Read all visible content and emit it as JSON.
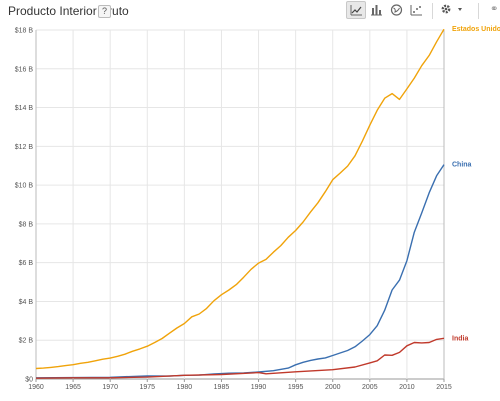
{
  "header": {
    "title": "Producto Interior Bruto",
    "help_label": "?"
  },
  "toolbar": {
    "buttons": [
      {
        "name": "line-chart-icon",
        "active": true
      },
      {
        "name": "bar-chart-icon",
        "active": false
      },
      {
        "name": "globe-icon",
        "active": false
      },
      {
        "name": "scatter-chart-icon",
        "active": false
      }
    ],
    "gear_icon": "gear-icon",
    "dropdown_icon": "caret-down-icon"
  },
  "colors": {
    "usa": "#f0a30a",
    "china": "#3a6fb0",
    "india": "#c0392b",
    "grid": "#e6e6e6"
  },
  "chart_data": {
    "type": "line",
    "title": "Producto Interior Bruto",
    "xlim": [
      1960,
      2015
    ],
    "ylim": [
      0,
      18
    ],
    "x_ticks": [
      1960,
      1965,
      1970,
      1975,
      1980,
      1985,
      1990,
      1995,
      2000,
      2005,
      2010,
      2015
    ],
    "x_tick_labels": [
      "1960",
      "1965",
      "1970",
      "1975",
      "1980",
      "1985",
      "1990",
      "1995",
      "2000",
      "2005",
      "2010",
      "2015"
    ],
    "y_ticks": [
      0,
      2,
      4,
      6,
      8,
      10,
      12,
      14,
      16,
      18
    ],
    "y_tick_labels": [
      "$0",
      "$2 B",
      "$4 B",
      "$6 B",
      "$8 B",
      "$10 B",
      "$12 B",
      "$14 B",
      "$16 B",
      "$18 B"
    ],
    "grid": true,
    "series": [
      {
        "name": "Estados Unidos",
        "key": "usa",
        "x": [
          1960,
          1961,
          1962,
          1963,
          1964,
          1965,
          1966,
          1967,
          1968,
          1969,
          1970,
          1971,
          1972,
          1973,
          1974,
          1975,
          1976,
          1977,
          1978,
          1979,
          1980,
          1981,
          1982,
          1983,
          1984,
          1985,
          1986,
          1987,
          1988,
          1989,
          1990,
          1991,
          1992,
          1993,
          1994,
          1995,
          1996,
          1997,
          1998,
          1999,
          2000,
          2001,
          2002,
          2003,
          2004,
          2005,
          2006,
          2007,
          2008,
          2009,
          2010,
          2011,
          2012,
          2013,
          2014,
          2015
        ],
        "values": [
          0.54,
          0.56,
          0.6,
          0.64,
          0.69,
          0.74,
          0.81,
          0.86,
          0.94,
          1.02,
          1.08,
          1.17,
          1.28,
          1.43,
          1.55,
          1.69,
          1.88,
          2.09,
          2.36,
          2.63,
          2.86,
          3.21,
          3.35,
          3.64,
          4.04,
          4.35,
          4.59,
          4.87,
          5.25,
          5.66,
          5.98,
          6.17,
          6.54,
          6.88,
          7.31,
          7.66,
          8.1,
          8.61,
          9.09,
          9.66,
          10.28,
          10.62,
          10.98,
          11.51,
          12.27,
          13.09,
          13.86,
          14.48,
          14.72,
          14.42,
          14.96,
          15.52,
          16.16,
          16.69,
          17.39,
          18.04
        ]
      },
      {
        "name": "China",
        "key": "china",
        "x": [
          1960,
          1965,
          1970,
          1975,
          1978,
          1980,
          1982,
          1984,
          1986,
          1988,
          1990,
          1992,
          1994,
          1995,
          1996,
          1997,
          1998,
          1999,
          2000,
          2001,
          2002,
          2003,
          2004,
          2005,
          2006,
          2007,
          2008,
          2009,
          2010,
          2011,
          2012,
          2013,
          2014,
          2015
        ],
        "values": [
          0.06,
          0.07,
          0.09,
          0.16,
          0.15,
          0.19,
          0.2,
          0.26,
          0.3,
          0.31,
          0.36,
          0.43,
          0.56,
          0.73,
          0.86,
          0.96,
          1.03,
          1.09,
          1.21,
          1.34,
          1.47,
          1.66,
          1.96,
          2.29,
          2.75,
          3.55,
          4.59,
          5.1,
          6.1,
          7.57,
          8.56,
          9.61,
          10.48,
          11.06
        ]
      },
      {
        "name": "India",
        "key": "india",
        "x": [
          1960,
          1965,
          1970,
          1975,
          1980,
          1985,
          1990,
          1991,
          1995,
          2000,
          2003,
          2005,
          2006,
          2007,
          2008,
          2009,
          2010,
          2011,
          2012,
          2013,
          2014,
          2015
        ],
        "values": [
          0.04,
          0.06,
          0.06,
          0.1,
          0.19,
          0.23,
          0.33,
          0.27,
          0.37,
          0.48,
          0.62,
          0.83,
          0.94,
          1.24,
          1.22,
          1.37,
          1.71,
          1.88,
          1.86,
          1.88,
          2.04,
          2.1
        ]
      }
    ]
  }
}
